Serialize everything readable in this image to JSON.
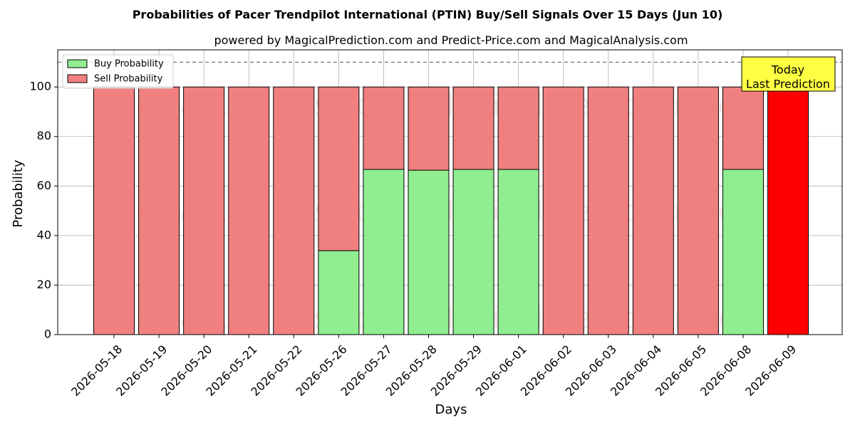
{
  "chart_data": {
    "type": "bar",
    "title": "Probabilities of Pacer Trendpilot International  (PTIN) Buy/Sell Signals Over 15 Days (Jun 10)",
    "subtitle": "powered by MagicalPrediction.com and Predict-Price.com and MagicalAnalysis.com",
    "xlabel": "Days",
    "ylabel": "Probability",
    "ylim": [
      0,
      115
    ],
    "yticks": [
      0,
      20,
      40,
      60,
      80,
      100
    ],
    "grid": true,
    "stacked": true,
    "legend_position": "top-left",
    "reference_line": 110,
    "categories": [
      "2026-05-18",
      "2026-05-19",
      "2026-05-20",
      "2026-05-21",
      "2026-05-22",
      "2026-05-26",
      "2026-05-27",
      "2026-05-28",
      "2026-05-29",
      "2026-06-01",
      "2026-06-02",
      "2026-06-03",
      "2026-06-04",
      "2026-06-05",
      "2026-06-08",
      "2026-06-09"
    ],
    "series": [
      {
        "name": "Buy Probability",
        "color": "#90ee90",
        "values": [
          0,
          0,
          0,
          0,
          0,
          33.9,
          66.7,
          66.4,
          66.7,
          66.7,
          0,
          0,
          0,
          0,
          66.7,
          0
        ]
      },
      {
        "name": "Sell Probability",
        "color": "#f08080",
        "values": [
          100,
          100,
          100,
          100,
          100,
          66.1,
          33.3,
          33.6,
          33.3,
          33.3,
          100,
          100,
          100,
          100,
          33.3,
          100
        ]
      }
    ],
    "highlight": {
      "index": 15,
      "color": "#ff0000"
    },
    "annotation": {
      "line1": "Today",
      "line2": "Last Prediction",
      "bg_color": "#ffff44"
    },
    "watermarks": [
      "MagicalAnalysis.com",
      "MagicalPrediction.com"
    ]
  }
}
